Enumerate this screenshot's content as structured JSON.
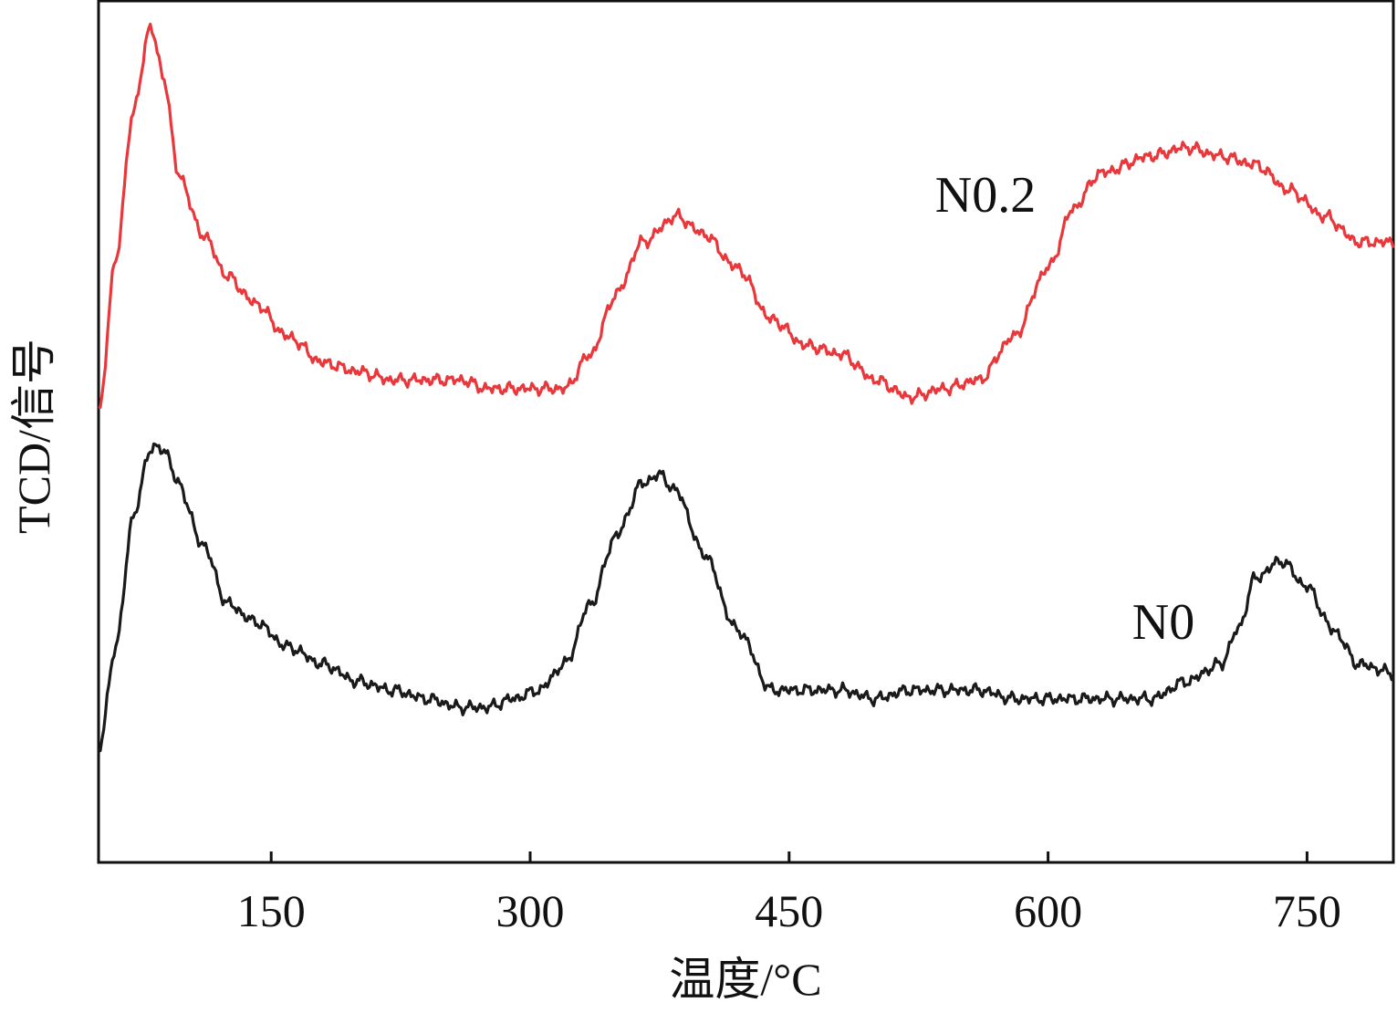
{
  "chart_data": {
    "type": "line",
    "xlabel": "温度/°C",
    "ylabel": "TCD/信号",
    "xlim": [
      50,
      800
    ],
    "ylim": [
      0,
      1
    ],
    "xticks": [
      150,
      300,
      450,
      600,
      750
    ],
    "xtick_labels": [
      "150",
      "300",
      "450",
      "600",
      "750"
    ],
    "yticks_shown": false,
    "grid": false,
    "legend": "none",
    "series": [
      {
        "name": "N0.2",
        "color": "#e8383c",
        "x": [
          50,
          60,
          70,
          80,
          88,
          96,
          110,
          125,
          140,
          160,
          180,
          200,
          220,
          240,
          260,
          275,
          290,
          305,
          320,
          335,
          350,
          365,
          385,
          400,
          420,
          440,
          460,
          480,
          500,
          520,
          540,
          560,
          580,
          600,
          615,
          630,
          660,
          680,
          700,
          720,
          740,
          760,
          780,
          800
        ],
        "y": [
          0.52,
          0.7,
          0.87,
          0.97,
          0.91,
          0.8,
          0.73,
          0.68,
          0.65,
          0.61,
          0.58,
          0.57,
          0.56,
          0.56,
          0.56,
          0.55,
          0.55,
          0.55,
          0.55,
          0.59,
          0.66,
          0.72,
          0.75,
          0.73,
          0.69,
          0.63,
          0.6,
          0.59,
          0.56,
          0.54,
          0.55,
          0.56,
          0.61,
          0.69,
          0.76,
          0.8,
          0.82,
          0.83,
          0.82,
          0.81,
          0.78,
          0.75,
          0.72,
          0.72
        ]
      },
      {
        "name": "N0",
        "color": "#1a1a1a",
        "x": [
          50,
          60,
          70,
          80,
          88,
          96,
          110,
          125,
          140,
          160,
          180,
          200,
          220,
          240,
          260,
          275,
          290,
          305,
          320,
          335,
          350,
          365,
          375,
          385,
          400,
          420,
          440,
          460,
          480,
          500,
          520,
          540,
          560,
          580,
          600,
          620,
          640,
          660,
          680,
          700,
          710,
          720,
          735,
          750,
          765,
          780,
          800
        ],
        "y": [
          0.13,
          0.25,
          0.4,
          0.48,
          0.48,
          0.44,
          0.37,
          0.3,
          0.28,
          0.25,
          0.23,
          0.21,
          0.2,
          0.19,
          0.18,
          0.18,
          0.19,
          0.2,
          0.23,
          0.3,
          0.38,
          0.44,
          0.45,
          0.43,
          0.36,
          0.27,
          0.2,
          0.2,
          0.2,
          0.19,
          0.2,
          0.2,
          0.2,
          0.19,
          0.19,
          0.19,
          0.19,
          0.19,
          0.21,
          0.23,
          0.27,
          0.33,
          0.35,
          0.32,
          0.27,
          0.23,
          0.22
        ]
      }
    ]
  }
}
